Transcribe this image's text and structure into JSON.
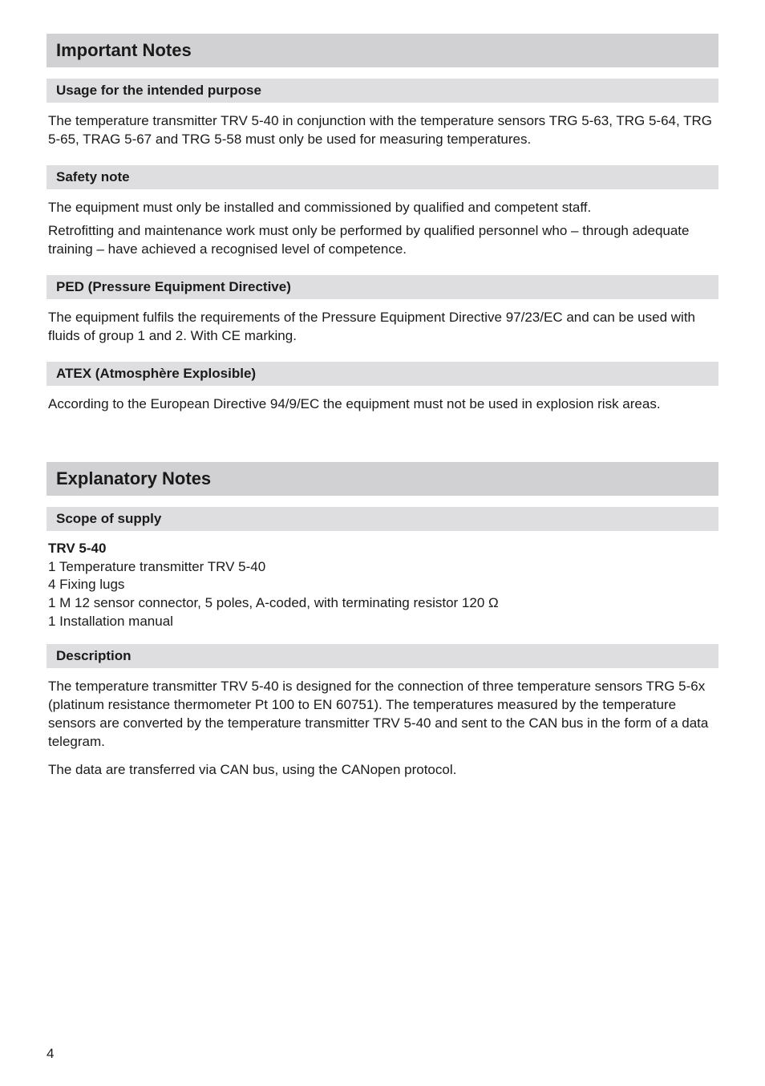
{
  "sections": {
    "important_notes": {
      "title": "Important Notes",
      "usage": {
        "heading": "Usage for the intended purpose",
        "text": "The temperature transmitter TRV 5-40 in conjunction with the temperature sensors TRG 5-63, TRG 5-64, TRG 5-65, TRAG 5-67 and TRG 5-58 must only be used for measuring temperatures."
      },
      "safety": {
        "heading": "Safety note",
        "para1": "The equipment must only be installed and commissioned by qualified and competent staff.",
        "para2": "Retrofitting and maintenance work must only be performed by qualified personnel who – through adequate training – have achieved a recognised level of competence."
      },
      "ped": {
        "heading": "PED (Pressure Equipment Directive)",
        "text": "The equipment fulfils the requirements of the Pressure Equipment Directive 97/23/EC and can be used with fluids of group 1 and 2. With CE marking."
      },
      "atex": {
        "heading": "ATEX (Atmosphère Explosible)",
        "text": "According to the European Directive 94/9/EC the equipment must not be used in explosion risk areas."
      }
    },
    "explanatory_notes": {
      "title": "Explanatory Notes",
      "scope": {
        "heading": "Scope of supply",
        "product_label": "TRV 5-40",
        "items": [
          "1 Temperature transmitter TRV 5-40",
          "4 Fixing lugs",
          "1 M 12 sensor connector, 5 poles, A-coded, with terminating resistor 120 Ω",
          "1 Installation manual"
        ]
      },
      "description": {
        "heading": "Description",
        "para1": "The temperature transmitter TRV 5-40 is designed for the connection of three temperature sensors TRG 5-6x (platinum resistance thermometer Pt 100 to EN 60751). The temperatures measured by the temperature sensors are converted by the temperature transmitter TRV 5-40 and sent to the CAN bus in the form of a data telegram.",
        "para2": "The data are transferred via CAN bus, using the CANopen protocol."
      }
    }
  },
  "page_number": "4",
  "colors": {
    "section_bg": "#d1d1d3",
    "subsection_bg": "#dedee0",
    "text": "#1a1a1a",
    "page_bg": "#ffffff"
  },
  "typography": {
    "section_title_size": 22,
    "subsection_title_size": 17,
    "body_size": 17
  }
}
